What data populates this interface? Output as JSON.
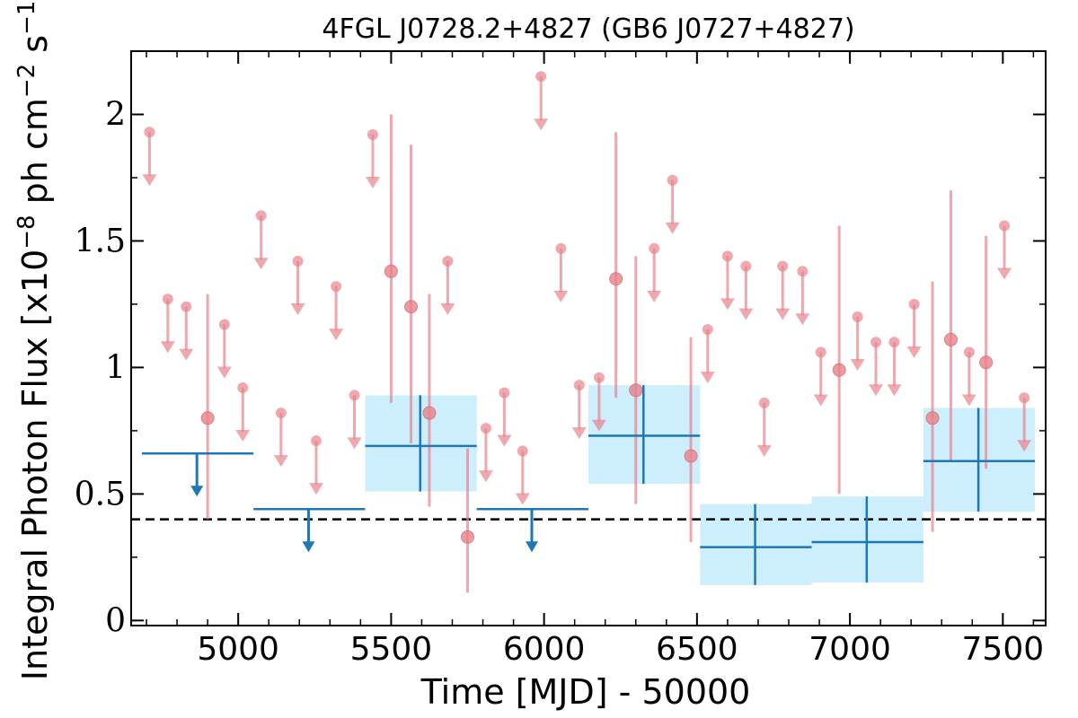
{
  "chart_data": {
    "type": "scatter",
    "title": "4FGL J0728.2+4827 (GB6 J0727+4827)",
    "xlabel": "Time [MJD] - 50000",
    "ylabel_main": "Integral Photon Flux [x10",
    "ylabel_exp1": "−8",
    "ylabel_mid": " ph cm",
    "ylabel_exp2": "−2",
    "ylabel_s": " s",
    "ylabel_exp3": "−1",
    "ylabel_end": "]",
    "xlim": [
      4650,
      7640
    ],
    "ylim": [
      -0.02,
      2.25
    ],
    "xticks": [
      {
        "value": 5000,
        "label": "5000"
      },
      {
        "value": 5500,
        "label": "5500"
      },
      {
        "value": 6000,
        "label": "6000"
      },
      {
        "value": 6500,
        "label": "6500"
      },
      {
        "value": 7000,
        "label": "7000"
      },
      {
        "value": 7500,
        "label": "7500"
      }
    ],
    "yticks": [
      {
        "value": 0,
        "label": "0"
      },
      {
        "value": 0.5,
        "label": "0.5"
      },
      {
        "value": 1,
        "label": "1"
      },
      {
        "value": 1.5,
        "label": "1.5"
      },
      {
        "value": 2,
        "label": "2"
      }
    ],
    "reference_line": 0.4,
    "colors": {
      "short_bins": "#e8838a",
      "long_bins": "#1f77b4",
      "error_band": "#cdeefd",
      "reference": "#000000"
    },
    "series": [
      {
        "points": [
          {
            "x": 4900,
            "y": 0.8,
            "ylo": 0.4,
            "yhi": 1.29
          },
          {
            "x": 5500,
            "y": 1.38,
            "ylo": 0.86,
            "yhi": 2.0
          },
          {
            "x": 5565,
            "y": 1.24,
            "ylo": 0.7,
            "yhi": 1.88
          },
          {
            "x": 5625,
            "y": 0.82,
            "ylo": 0.45,
            "yhi": 1.29
          },
          {
            "x": 5750,
            "y": 0.33,
            "ylo": 0.11,
            "yhi": 0.68
          },
          {
            "x": 6235,
            "y": 1.35,
            "ylo": 0.88,
            "yhi": 1.93
          },
          {
            "x": 6300,
            "y": 0.91,
            "ylo": 0.46,
            "yhi": 1.44
          },
          {
            "x": 6480,
            "y": 0.65,
            "ylo": 0.31,
            "yhi": 1.12
          },
          {
            "x": 6965,
            "y": 0.99,
            "ylo": 0.5,
            "yhi": 1.56
          },
          {
            "x": 7270,
            "y": 0.8,
            "ylo": 0.35,
            "yhi": 1.34
          },
          {
            "x": 7330,
            "y": 1.11,
            "ylo": 0.63,
            "yhi": 1.7
          },
          {
            "x": 7445,
            "y": 1.02,
            "ylo": 0.6,
            "yhi": 1.52
          }
        ],
        "upper_limits": [
          {
            "x": 4710,
            "y": 1.93
          },
          {
            "x": 4770,
            "y": 1.27
          },
          {
            "x": 4830,
            "y": 1.24
          },
          {
            "x": 4955,
            "y": 1.17
          },
          {
            "x": 5015,
            "y": 0.92
          },
          {
            "x": 5075,
            "y": 1.6
          },
          {
            "x": 5140,
            "y": 0.82
          },
          {
            "x": 5195,
            "y": 1.42
          },
          {
            "x": 5255,
            "y": 0.71
          },
          {
            "x": 5320,
            "y": 1.32
          },
          {
            "x": 5380,
            "y": 0.89
          },
          {
            "x": 5440,
            "y": 1.92
          },
          {
            "x": 5685,
            "y": 1.42
          },
          {
            "x": 5810,
            "y": 0.76
          },
          {
            "x": 5870,
            "y": 0.9
          },
          {
            "x": 5930,
            "y": 0.67
          },
          {
            "x": 5990,
            "y": 2.15
          },
          {
            "x": 6055,
            "y": 1.47
          },
          {
            "x": 6115,
            "y": 0.93
          },
          {
            "x": 6180,
            "y": 0.96
          },
          {
            "x": 6360,
            "y": 1.47
          },
          {
            "x": 6420,
            "y": 1.74
          },
          {
            "x": 6535,
            "y": 1.15
          },
          {
            "x": 6600,
            "y": 1.44
          },
          {
            "x": 6660,
            "y": 1.4
          },
          {
            "x": 6720,
            "y": 0.86
          },
          {
            "x": 6780,
            "y": 1.4
          },
          {
            "x": 6845,
            "y": 1.38
          },
          {
            "x": 6905,
            "y": 1.06
          },
          {
            "x": 7025,
            "y": 1.2
          },
          {
            "x": 7085,
            "y": 1.1
          },
          {
            "x": 7145,
            "y": 1.1
          },
          {
            "x": 7210,
            "y": 1.25
          },
          {
            "x": 7390,
            "y": 1.06
          },
          {
            "x": 7505,
            "y": 1.56
          },
          {
            "x": 7570,
            "y": 0.88
          }
        ]
      },
      {
        "points": [
          {
            "x": 5595,
            "x0": 5415,
            "x1": 5780,
            "y": 0.69,
            "ylo": 0.51,
            "yhi": 0.89
          },
          {
            "x": 6325,
            "x0": 6145,
            "x1": 6510,
            "y": 0.73,
            "ylo": 0.54,
            "yhi": 0.93
          },
          {
            "x": 6690,
            "x0": 6510,
            "x1": 6875,
            "y": 0.29,
            "ylo": 0.14,
            "yhi": 0.46
          },
          {
            "x": 7055,
            "x0": 6875,
            "x1": 7240,
            "y": 0.31,
            "ylo": 0.15,
            "yhi": 0.49
          },
          {
            "x": 7420,
            "x0": 7240,
            "x1": 7605,
            "y": 0.63,
            "ylo": 0.43,
            "yhi": 0.84
          }
        ],
        "upper_limits": [
          {
            "x": 4865,
            "x0": 4685,
            "x1": 5050,
            "y": 0.66
          },
          {
            "x": 5230,
            "x0": 5050,
            "x1": 5415,
            "y": 0.44
          },
          {
            "x": 5960,
            "x0": 5780,
            "x1": 6145,
            "y": 0.44
          }
        ]
      }
    ]
  }
}
